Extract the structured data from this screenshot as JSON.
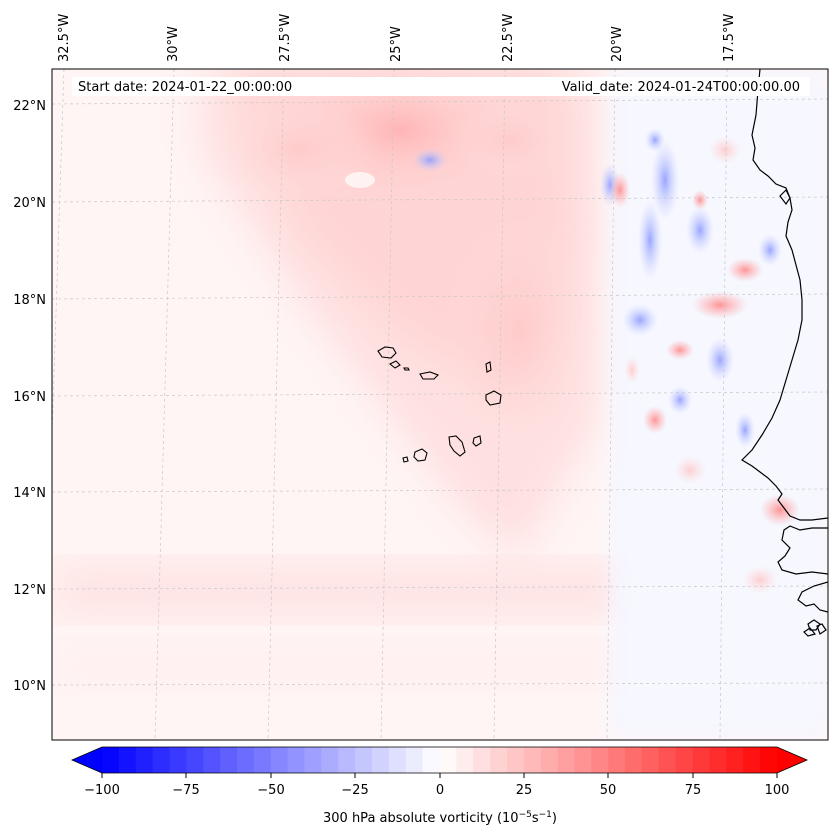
{
  "map": {
    "start_date_label": "Start date: 2024-01-22_00:00:00",
    "valid_date_label": "Valid_date: 2024-01-24T00:00:00.00",
    "longitude_labels": [
      "32.5°W",
      "30°W",
      "27.5°W",
      "25°W",
      "22.5°W",
      "20°W",
      "17.5°W"
    ],
    "latitude_labels": [
      "22°N",
      "20°N",
      "18°N",
      "16°N",
      "14°N",
      "12°N",
      "10°N"
    ],
    "variable": "300 hPa absolute vorticity",
    "features": [
      "Cape Verde islands",
      "West African coastline"
    ]
  },
  "colorbar": {
    "label_prefix": "300 hPa absolute vorticity (10",
    "exp1": "−5",
    "mid": "s",
    "exp2": "−1",
    "label_suffix": ")",
    "ticks": [
      "−100",
      "−75",
      "−50",
      "−25",
      "0",
      "25",
      "50",
      "75",
      "100"
    ],
    "min": -100,
    "max": 100,
    "colors": {
      "low": "#0000ff",
      "mid": "#ffffff",
      "high": "#ff0000"
    }
  }
}
